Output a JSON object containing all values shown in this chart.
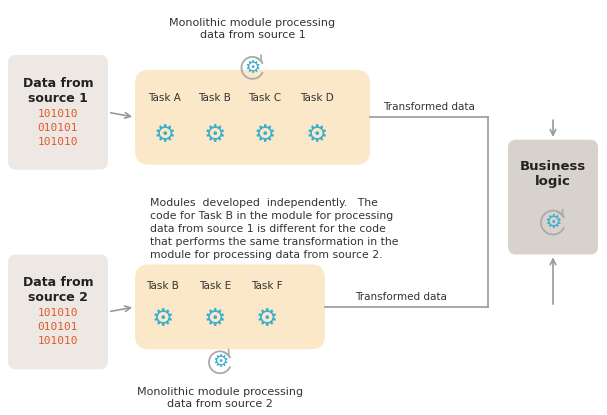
{
  "bg_color": "#ffffff",
  "source_box_color": "#ede8e4",
  "task_box_color": "#fae8c8",
  "business_box_color": "#d8d2cc",
  "arrow_color": "#999999",
  "gear_color": "#3ab0cc",
  "gear_arc_color": "#aaaaaa",
  "source1_title": "Data from\nsource 1",
  "source2_title": "Data from\nsource 2",
  "source1_data": "101010\n010101\n101010",
  "source2_data": "101010\n010101\n101010",
  "business_title": "Business\nlogic",
  "tasks1": [
    "Task A",
    "Task B",
    "Task C",
    "Task D"
  ],
  "tasks2": [
    "Task B",
    "Task E",
    "Task F"
  ],
  "label1_top": "Monolithic module processing\ndata from source 1",
  "label2_bottom": "Monolithic module processing\ndata from source 2",
  "transformed_data": "Transformed data",
  "middle_text": "Modules  developed  independently.   The\ncode for Task B in the module for processing\ndata from source 1 is different for the code\nthat performs the same transformation in the\nmodule for processing data from source 2.",
  "data_color": "#e05a2b",
  "text_color": "#333333"
}
